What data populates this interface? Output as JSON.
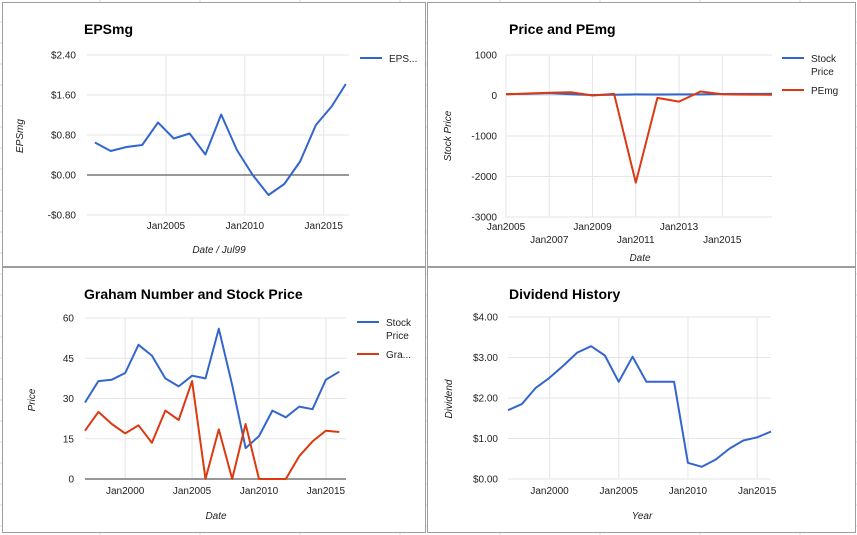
{
  "colors": {
    "blue": "#3366cc",
    "red": "#dc3912",
    "grid": "#e6e6e6",
    "zero": "#333333",
    "border": "#9e9e9e"
  },
  "charts": [
    {
      "title": "EPSmg",
      "ylabel": "EPSmg",
      "xlabel": "Date / Jul99",
      "ylim": [
        -0.8,
        2.4
      ],
      "yticks": [
        {
          "v": 2.4,
          "label": "$2.40"
        },
        {
          "v": 1.6,
          "label": "$1.60"
        },
        {
          "v": 0.8,
          "label": "$0.80"
        },
        {
          "v": 0,
          "label": "$0.00"
        },
        {
          "v": -0.8,
          "label": "-$0.80"
        }
      ],
      "xlim": [
        2000,
        2016.6
      ],
      "xticks": [
        {
          "v": 2005,
          "label": "Jan2005"
        },
        {
          "v": 2010,
          "label": "Jan2010"
        },
        {
          "v": 2015,
          "label": "Jan2015"
        }
      ],
      "legend": [
        "EPS..."
      ]
    },
    {
      "title": "Price and PEmg",
      "ylabel": "Stock Price",
      "xlabel": "Date",
      "ylim": [
        -3000,
        1000
      ],
      "yticks": [
        {
          "v": 1000,
          "label": "1000"
        },
        {
          "v": 0,
          "label": "0"
        },
        {
          "v": -1000,
          "label": "-1000"
        },
        {
          "v": -2000,
          "label": "-2000"
        },
        {
          "v": -3000,
          "label": "-3000"
        }
      ],
      "xlim": [
        2005,
        2017.3
      ],
      "xticks": [
        {
          "v": 2005,
          "label": "Jan2005",
          "row": 1
        },
        {
          "v": 2007,
          "label": "Jan2007",
          "row": 2
        },
        {
          "v": 2009,
          "label": "Jan2009",
          "row": 1
        },
        {
          "v": 2011,
          "label": "Jan2011",
          "row": 2
        },
        {
          "v": 2013,
          "label": "Jan2013",
          "row": 1
        },
        {
          "v": 2015,
          "label": "Jan2015",
          "row": 2
        }
      ],
      "legend": [
        "Stock Price",
        "PEmg"
      ]
    },
    {
      "title": "Graham Number and Stock Price",
      "ylabel": "Price",
      "xlabel": "Date",
      "ylim": [
        0,
        60
      ],
      "yticks": [
        {
          "v": 60,
          "label": "60"
        },
        {
          "v": 45,
          "label": "45"
        },
        {
          "v": 30,
          "label": "30"
        },
        {
          "v": 15,
          "label": "15"
        },
        {
          "v": 0,
          "label": "0"
        }
      ],
      "xlim": [
        1997,
        2016.5
      ],
      "xticks": [
        {
          "v": 2000,
          "label": "Jan2000"
        },
        {
          "v": 2005,
          "label": "Jan2005"
        },
        {
          "v": 2010,
          "label": "Jan2010"
        },
        {
          "v": 2015,
          "label": "Jan2015"
        }
      ],
      "legend": [
        "Stock Price",
        "Gra..."
      ]
    },
    {
      "title": "Dividend History",
      "ylabel": "Dividend",
      "xlabel": "Year",
      "ylim": [
        0,
        4
      ],
      "yticks": [
        {
          "v": 4,
          "label": "$4.00"
        },
        {
          "v": 3,
          "label": "$3.00"
        },
        {
          "v": 2,
          "label": "$2.00"
        },
        {
          "v": 1,
          "label": "$1.00"
        },
        {
          "v": 0,
          "label": "$0.00"
        }
      ],
      "xlim": [
        1997,
        2016
      ],
      "xticks": [
        {
          "v": 2000,
          "label": "Jan2000"
        },
        {
          "v": 2005,
          "label": "Jan2005"
        },
        {
          "v": 2010,
          "label": "Jan2010"
        },
        {
          "v": 2015,
          "label": "Jan2015"
        }
      ],
      "legend": []
    }
  ],
  "chart_data": [
    {
      "type": "line",
      "title": "EPSmg",
      "xlabel": "Date / Jul99",
      "ylabel": "EPSmg",
      "ylim": [
        -0.8,
        2.4
      ],
      "series": [
        {
          "name": "EPS...",
          "color": "#3366cc",
          "x": [
            2000.5,
            2001.5,
            2002.5,
            2003.5,
            2004.5,
            2005.5,
            2006.5,
            2007.5,
            2008.5,
            2009.5,
            2010.5,
            2011.5,
            2012.5,
            2013.5,
            2014.5,
            2015.5,
            2016.4
          ],
          "y": [
            0.65,
            0.48,
            0.56,
            0.6,
            1.05,
            0.73,
            0.83,
            0.41,
            1.21,
            0.5,
            0.0,
            -0.4,
            -0.18,
            0.27,
            1.0,
            1.37,
            1.82
          ]
        }
      ]
    },
    {
      "type": "line",
      "title": "Price and PEmg",
      "xlabel": "Date",
      "ylabel": "Stock Price",
      "ylim": [
        -3000,
        1000
      ],
      "series": [
        {
          "name": "Stock Price",
          "color": "#3366cc",
          "x": [
            2005,
            2006,
            2007,
            2008,
            2009,
            2010,
            2011,
            2012,
            2013,
            2014,
            2015,
            2016,
            2017.3
          ],
          "y": [
            38,
            40,
            56,
            30,
            12,
            18,
            26,
            24,
            27,
            26,
            37,
            40,
            42
          ]
        },
        {
          "name": "PEmg",
          "color": "#dc3912",
          "x": [
            2005,
            2006,
            2007,
            2008,
            2009,
            2010,
            2011,
            2012,
            2013,
            2014,
            2015,
            2016,
            2017.3
          ],
          "y": [
            30,
            50,
            70,
            80,
            0,
            40,
            -2150,
            -60,
            -150,
            100,
            30,
            25,
            20
          ]
        }
      ]
    },
    {
      "type": "line",
      "title": "Graham Number and Stock Price",
      "xlabel": "Date",
      "ylabel": "Price",
      "ylim": [
        0,
        60
      ],
      "series": [
        {
          "name": "Stock Price",
          "color": "#3366cc",
          "x": [
            1997,
            1998,
            1999,
            2000,
            2001,
            2002,
            2003,
            2004,
            2005,
            2006,
            2007,
            2008,
            2009,
            2010,
            2011,
            2012,
            2013,
            2014,
            2015,
            2016
          ],
          "y": [
            28.5,
            36.5,
            37,
            39.5,
            50,
            46,
            37.5,
            34.5,
            38.5,
            37.5,
            56,
            35,
            11.5,
            16,
            25.5,
            23,
            27,
            26,
            37,
            40
          ]
        },
        {
          "name": "Gra...",
          "color": "#dc3912",
          "x": [
            1997,
            1998,
            1999,
            2000,
            2001,
            2002,
            2003,
            2004,
            2005,
            2006,
            2007,
            2008,
            2009,
            2010,
            2011,
            2012,
            2013,
            2014,
            2015,
            2016
          ],
          "y": [
            18,
            25,
            20.5,
            17,
            20,
            13.5,
            25.5,
            22,
            36.5,
            0,
            18.5,
            0,
            20.5,
            0,
            0,
            0,
            8.5,
            14,
            18,
            17.5
          ]
        }
      ]
    },
    {
      "type": "line",
      "title": "Dividend History",
      "xlabel": "Year",
      "ylabel": "Dividend",
      "ylim": [
        0,
        4
      ],
      "series": [
        {
          "color": "#3366cc",
          "x": [
            1997,
            1998,
            1999,
            2000,
            2001,
            2002,
            2003,
            2004,
            2005,
            2006,
            2007,
            2008,
            2009,
            2010,
            2011,
            2012,
            2013,
            2014,
            2015,
            2016
          ],
          "y": [
            1.7,
            1.85,
            2.25,
            2.5,
            2.8,
            3.12,
            3.28,
            3.05,
            2.4,
            3.02,
            2.4,
            2.4,
            2.4,
            0.4,
            0.3,
            0.48,
            0.75,
            0.95,
            1.03,
            1.17
          ]
        }
      ]
    }
  ]
}
